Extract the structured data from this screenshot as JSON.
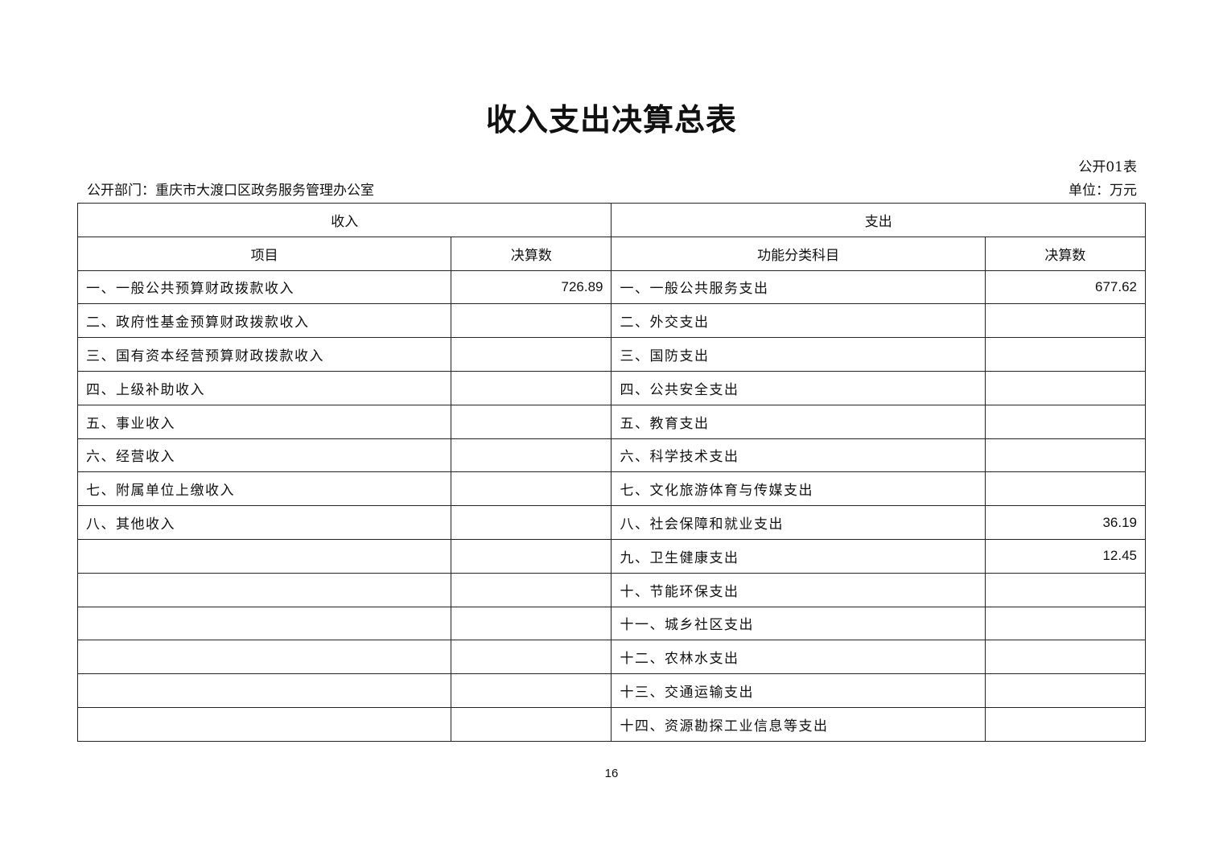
{
  "title": "收入支出决算总表",
  "table_no": "公开01表",
  "department": "公开部门：重庆市大渡口区政务服务管理办公室",
  "unit": "单位：万元",
  "headers": {
    "income": "收入",
    "expense": "支出",
    "item": "项目",
    "amount": "决算数",
    "func": "功能分类科目",
    "amount2": "决算数"
  },
  "rows": [
    {
      "income_item": "一、一般公共预算财政拨款收入",
      "income_amount": "726.89",
      "expense_item": "一、一般公共服务支出",
      "expense_amount": "677.62"
    },
    {
      "income_item": "二、政府性基金预算财政拨款收入",
      "income_amount": "",
      "expense_item": "二、外交支出",
      "expense_amount": ""
    },
    {
      "income_item": "三、国有资本经营预算财政拨款收入",
      "income_amount": "",
      "expense_item": "三、国防支出",
      "expense_amount": ""
    },
    {
      "income_item": "四、上级补助收入",
      "income_amount": "",
      "expense_item": "四、公共安全支出",
      "expense_amount": ""
    },
    {
      "income_item": "五、事业收入",
      "income_amount": "",
      "expense_item": "五、教育支出",
      "expense_amount": ""
    },
    {
      "income_item": "六、经营收入",
      "income_amount": "",
      "expense_item": "六、科学技术支出",
      "expense_amount": ""
    },
    {
      "income_item": "七、附属单位上缴收入",
      "income_amount": "",
      "expense_item": "七、文化旅游体育与传媒支出",
      "expense_amount": ""
    },
    {
      "income_item": "八、其他收入",
      "income_amount": "",
      "expense_item": "八、社会保障和就业支出",
      "expense_amount": "36.19"
    },
    {
      "income_item": "",
      "income_amount": "",
      "expense_item": "九、卫生健康支出",
      "expense_amount": "12.45"
    },
    {
      "income_item": "",
      "income_amount": "",
      "expense_item": "十、节能环保支出",
      "expense_amount": ""
    },
    {
      "income_item": "",
      "income_amount": "",
      "expense_item": "十一、城乡社区支出",
      "expense_amount": ""
    },
    {
      "income_item": "",
      "income_amount": "",
      "expense_item": "十二、农林水支出",
      "expense_amount": ""
    },
    {
      "income_item": "",
      "income_amount": "",
      "expense_item": "十三、交通运输支出",
      "expense_amount": ""
    },
    {
      "income_item": "",
      "income_amount": "",
      "expense_item": "十四、资源勘探工业信息等支出",
      "expense_amount": ""
    }
  ],
  "page_number": "16"
}
